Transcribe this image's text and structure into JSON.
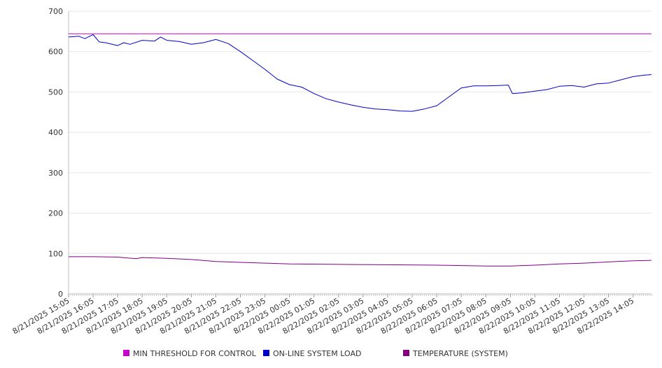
{
  "chart_data": {
    "type": "line",
    "title": "",
    "xlabel": "",
    "ylabel": "",
    "ylim": [
      0,
      700
    ],
    "yticks": [
      0,
      100,
      200,
      300,
      400,
      500,
      600,
      700
    ],
    "x_tick_labels": [
      "8/21/2025 15:05",
      "8/21/2025 16:05",
      "8/21/2025 17:05",
      "8/21/2025 18:05",
      "8/21/2025 19:05",
      "8/21/2025 20:05",
      "8/21/2025 21:05",
      "8/21/2025 22:05",
      "8/21/2025 23:05",
      "8/22/2025 00:05",
      "8/22/2025 01:05",
      "8/22/2025 02:05",
      "8/22/2025 03:05",
      "8/22/2025 04:05",
      "8/22/2025 05:05",
      "8/22/2025 06:05",
      "8/22/2025 07:05",
      "8/22/2025 08:05",
      "8/22/2025 09:05",
      "8/22/2025 10:05",
      "8/22/2025 11:05",
      "8/22/2025 12:05",
      "8/22/2025 13:05",
      "8/22/2025 14:05"
    ],
    "x_start": "8/21/2025 15:05",
    "x_end": "8/22/2025 14:50",
    "grid": true,
    "legend_position": "bottom",
    "series": [
      {
        "name": "MIN THRESHOLD FOR CONTROL",
        "color": "#cc00cc",
        "x": [
          "8/21/2025 15:05",
          "8/22/2025 14:50"
        ],
        "values": [
          644,
          644
        ]
      },
      {
        "name": "ON-LINE SYSTEM LOAD",
        "color": "#0000cc",
        "x": [
          "8/21/2025 15:05",
          "8/21/2025 15:30",
          "8/21/2025 15:45",
          "8/21/2025 16:05",
          "8/21/2025 16:20",
          "8/21/2025 16:35",
          "8/21/2025 17:05",
          "8/21/2025 17:20",
          "8/21/2025 17:35",
          "8/21/2025 18:05",
          "8/21/2025 18:35",
          "8/21/2025 18:50",
          "8/21/2025 19:05",
          "8/21/2025 19:35",
          "8/21/2025 20:05",
          "8/21/2025 20:35",
          "8/21/2025 21:05",
          "8/21/2025 21:35",
          "8/21/2025 22:05",
          "8/21/2025 22:35",
          "8/21/2025 23:05",
          "8/21/2025 23:35",
          "8/22/2025 00:05",
          "8/22/2025 00:35",
          "8/22/2025 01:05",
          "8/22/2025 01:35",
          "8/22/2025 02:05",
          "8/22/2025 02:35",
          "8/22/2025 03:05",
          "8/22/2025 03:35",
          "8/22/2025 04:05",
          "8/22/2025 04:35",
          "8/22/2025 05:05",
          "8/22/2025 05:35",
          "8/22/2025 06:05",
          "8/22/2025 06:35",
          "8/22/2025 07:05",
          "8/22/2025 07:35",
          "8/22/2025 08:05",
          "8/22/2025 08:35",
          "8/22/2025 09:00",
          "8/22/2025 09:10",
          "8/22/2025 09:35",
          "8/22/2025 10:05",
          "8/22/2025 10:35",
          "8/22/2025 11:05",
          "8/22/2025 11:35",
          "8/22/2025 12:05",
          "8/22/2025 12:35",
          "8/22/2025 13:05",
          "8/22/2025 13:35",
          "8/22/2025 14:05",
          "8/22/2025 14:35",
          "8/22/2025 14:50"
        ],
        "values": [
          636,
          638,
          632,
          642,
          624,
          622,
          615,
          622,
          618,
          628,
          626,
          636,
          628,
          625,
          618,
          622,
          630,
          620,
          600,
          578,
          556,
          532,
          518,
          512,
          496,
          483,
          475,
          468,
          462,
          458,
          456,
          453,
          452,
          458,
          466,
          488,
          510,
          515,
          515,
          516,
          517,
          496,
          498,
          502,
          506,
          514,
          516,
          512,
          520,
          522,
          530,
          538,
          542,
          543
        ]
      },
      {
        "name": "TEMPERATURE (SYSTEM)",
        "color": "#800080",
        "x": [
          "8/21/2025 15:05",
          "8/21/2025 16:05",
          "8/21/2025 17:05",
          "8/21/2025 17:50",
          "8/21/2025 18:05",
          "8/21/2025 19:05",
          "8/21/2025 20:05",
          "8/21/2025 21:05",
          "8/21/2025 22:05",
          "8/21/2025 23:05",
          "8/22/2025 00:05",
          "8/22/2025 02:05",
          "8/22/2025 04:05",
          "8/22/2025 06:05",
          "8/22/2025 07:05",
          "8/22/2025 08:05",
          "8/22/2025 09:05",
          "8/22/2025 10:05",
          "8/22/2025 11:05",
          "8/22/2025 12:05",
          "8/22/2025 13:05",
          "8/22/2025 14:05",
          "8/22/2025 14:50"
        ],
        "values": [
          92,
          92,
          91,
          87,
          90,
          88,
          85,
          80,
          78,
          76,
          74,
          73,
          72,
          71,
          70,
          69,
          69,
          71,
          74,
          76,
          79,
          82,
          83
        ]
      }
    ]
  }
}
